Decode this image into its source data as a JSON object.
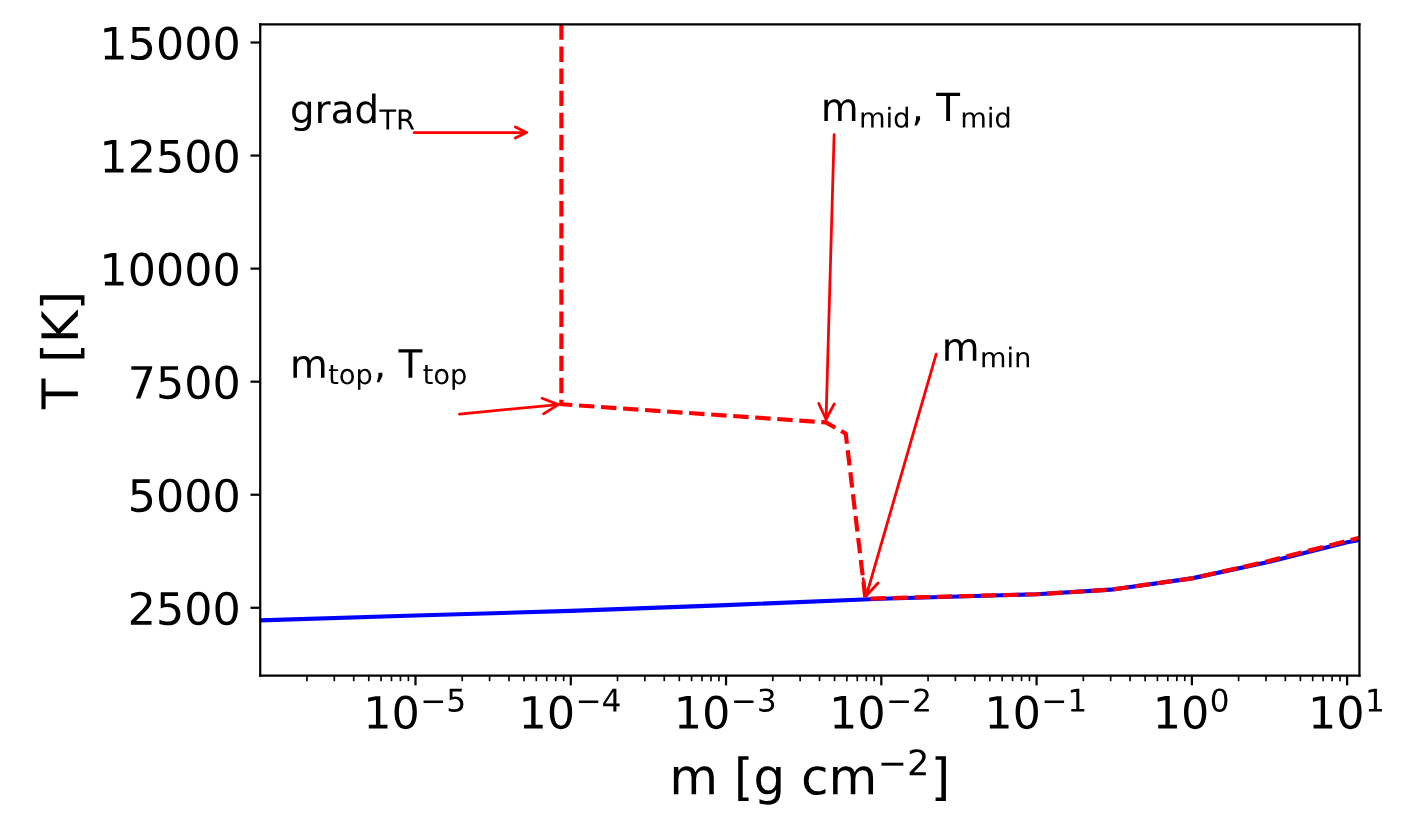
{
  "chart_data": {
    "type": "line",
    "xlabel": "m [g cm$^{−2}$]",
    "ylabel": "T [K]",
    "log": "x",
    "grid": false,
    "xlim": [
      1e-06,
      12
    ],
    "ylim": [
      1000,
      15400
    ],
    "xticks": [
      {
        "value": 1e-05,
        "label": "10$^{−5}$"
      },
      {
        "value": 0.0001,
        "label": "10$^{−4}$"
      },
      {
        "value": 0.001,
        "label": "10$^{−3}$"
      },
      {
        "value": 0.01,
        "label": "10$^{−2}$"
      },
      {
        "value": 0.1,
        "label": "10$^{−1}$"
      },
      {
        "value": 1,
        "label": "10$^{0}$"
      },
      {
        "value": 10,
        "label": "10$^{1}$"
      }
    ],
    "yticks": [
      2500,
      5000,
      7500,
      10000,
      12500,
      15000
    ],
    "series": [
      {
        "color": "#0000ff",
        "line_style": "solid",
        "x": [
          1e-06,
          1e-05,
          0.0001,
          0.001,
          0.01,
          0.1,
          0.3,
          1,
          3,
          10,
          12
        ],
        "values": [
          2220,
          2330,
          2430,
          2560,
          2700,
          2800,
          2900,
          3150,
          3500,
          3950,
          4000
        ]
      },
      {
        "color": "#ff0000",
        "line_style": "dashed",
        "x": [
          8.7e-05,
          8.7e-05,
          0.0044,
          0.0059,
          0.0079,
          0.1,
          0.3,
          1,
          3,
          10,
          12
        ],
        "values": [
          15400,
          7000,
          6600,
          6350,
          2700,
          2800,
          2900,
          3150,
          3520,
          3980,
          4050
        ]
      }
    ],
    "annotations": [
      "grad$_{TR}$",
      {
        "text": "m$_{top}$, T$_{top}$",
        "x": 8.7e-05,
        "y": 7000
      },
      {
        "text": "m$_{mid}$, T$_{mid}$",
        "x": 0.0044,
        "y": 6600
      },
      {
        "text": "m$_{min}$",
        "x": 0.0079,
        "y": 2700
      }
    ]
  }
}
